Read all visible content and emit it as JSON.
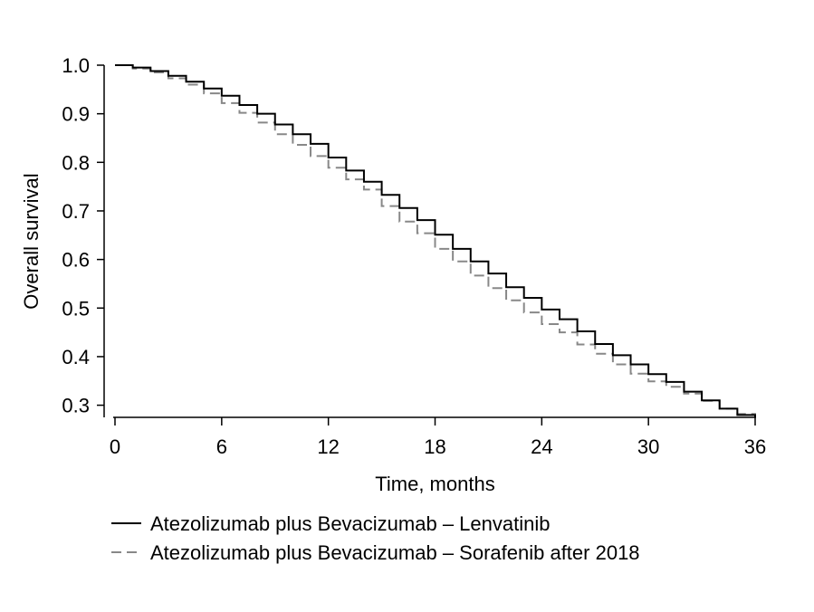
{
  "chart_data": {
    "type": "line",
    "title": "",
    "xlabel": "Time, months",
    "ylabel": "Overall survival",
    "xlim": [
      0,
      36
    ],
    "ylim": [
      0.275,
      1.0
    ],
    "xticks": [
      0,
      6,
      12,
      18,
      24,
      30,
      36
    ],
    "yticks": [
      0.3,
      0.4,
      0.5,
      0.6,
      0.7,
      0.8,
      0.9,
      1.0
    ],
    "ytick_labels": [
      "0.3",
      "0.4",
      "0.5",
      "0.6",
      "0.7",
      "0.8",
      "0.9",
      "1.0"
    ],
    "grid": false,
    "legend_position": "bottom",
    "series": [
      {
        "name": "Atezolizumab plus Bevacizumab – Lenvatinib",
        "style": "solid",
        "color": "#000000",
        "step": "post",
        "x": [
          0,
          1,
          2,
          3,
          4,
          5,
          6,
          7,
          8,
          9,
          10,
          11,
          12,
          13,
          14,
          15,
          16,
          17,
          18,
          19,
          20,
          21,
          22,
          23,
          24,
          25,
          26,
          27,
          28,
          29,
          30,
          31,
          32,
          33,
          34,
          35,
          36
        ],
        "y": [
          1.0,
          0.995,
          0.988,
          0.978,
          0.966,
          0.952,
          0.937,
          0.918,
          0.9,
          0.878,
          0.858,
          0.838,
          0.81,
          0.783,
          0.76,
          0.733,
          0.706,
          0.681,
          0.651,
          0.622,
          0.596,
          0.571,
          0.543,
          0.521,
          0.497,
          0.477,
          0.452,
          0.426,
          0.403,
          0.384,
          0.364,
          0.348,
          0.328,
          0.31,
          0.293,
          0.28,
          0.275
        ]
      },
      {
        "name": "Atezolizumab plus Bevacizumab – Sorafenib after 2018",
        "style": "dashed",
        "color": "#888888",
        "step": "post",
        "x": [
          0,
          1,
          2,
          3,
          4,
          5,
          6,
          7,
          8,
          9,
          10,
          11,
          12,
          13,
          14,
          15,
          16,
          17,
          18,
          19,
          20,
          21,
          22,
          23,
          24,
          25,
          26,
          27,
          28,
          29,
          30,
          31,
          32,
          33,
          34,
          35,
          36
        ],
        "y": [
          1.0,
          0.993,
          0.985,
          0.973,
          0.96,
          0.942,
          0.922,
          0.902,
          0.882,
          0.858,
          0.836,
          0.813,
          0.789,
          0.765,
          0.744,
          0.71,
          0.678,
          0.654,
          0.622,
          0.596,
          0.567,
          0.541,
          0.516,
          0.491,
          0.467,
          0.45,
          0.425,
          0.406,
          0.384,
          0.365,
          0.349,
          0.338,
          0.324,
          0.309,
          0.293,
          0.282,
          0.275
        ]
      }
    ]
  }
}
